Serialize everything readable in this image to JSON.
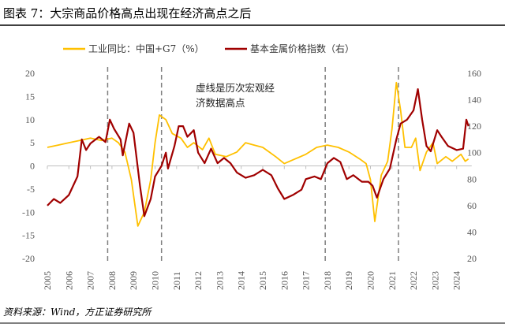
{
  "title": "图表 7：大宗商品价格高点出现在经济高点之后",
  "source": "资料来源：Wind，方正证券研究所",
  "colors": {
    "ip": "#FFC000",
    "metal": "#A00000"
  },
  "chart_data": {
    "type": "line",
    "title": "图表 7：大宗商品价格高点出现在经济高点之后",
    "annotation": "虚线是历次宏观经济数据高点",
    "annotation_lines": [
      "虚线是历次宏观经",
      "济数据高点"
    ],
    "x_ticks": [
      "2005",
      "2006",
      "2007",
      "2008",
      "2009",
      "2010",
      "2011",
      "2012",
      "2013",
      "2014",
      "2015",
      "2016",
      "2017",
      "2018",
      "2019",
      "2020",
      "2021",
      "2022",
      "2023",
      "2024"
    ],
    "y_left": {
      "ylim": [
        -20,
        20
      ],
      "ticks": [
        "20",
        "15",
        "10",
        "5",
        "0",
        "-5",
        "-10",
        "-15",
        "-20"
      ]
    },
    "y_right": {
      "ylim": [
        20,
        160
      ],
      "ticks": [
        "160",
        "140",
        "120",
        "100",
        "80",
        "60",
        "40",
        "20"
      ]
    },
    "vlines": [
      2007.8,
      2010.3,
      2017.9,
      2021.3
    ],
    "grid": false,
    "legend_position": "top",
    "series": [
      {
        "name": "工业同比：中国+G7（%）",
        "axis": "left",
        "x": [
          2005,
          2005.5,
          2006,
          2006.5,
          2007,
          2007.5,
          2008,
          2008.3,
          2008.6,
          2008.9,
          2009.2,
          2009.5,
          2009.8,
          2010.0,
          2010.2,
          2010.5,
          2010.8,
          2011.2,
          2011.5,
          2011.8,
          2012.2,
          2012.5,
          2012.8,
          2013.3,
          2013.8,
          2014.2,
          2014.6,
          2015.0,
          2015.3,
          2015.6,
          2016.0,
          2016.5,
          2017.0,
          2017.5,
          2018.0,
          2018.5,
          2019.0,
          2019.5,
          2019.8,
          2020.0,
          2020.2,
          2020.5,
          2020.8,
          2021.0,
          2021.2,
          2021.4,
          2021.6,
          2021.9,
          2022.1,
          2022.3,
          2022.6,
          2022.9,
          2023.1,
          2023.5,
          2023.8,
          2024.2,
          2024.4,
          2024.55
        ],
        "values": [
          4,
          4.5,
          5,
          5.5,
          6,
          5.5,
          6,
          5,
          3,
          -3,
          -13,
          -10,
          -3,
          5,
          11,
          10,
          7,
          6,
          4,
          5,
          3.5,
          6,
          2.5,
          2,
          3,
          5,
          4.5,
          4,
          3,
          2,
          0.5,
          1.5,
          2.5,
          4,
          4.5,
          4,
          3,
          1.5,
          0.5,
          -3,
          -12,
          -2,
          1,
          8,
          18,
          12,
          4,
          4,
          6,
          -1,
          3,
          5,
          0.5,
          2,
          1,
          2.5,
          1,
          1.5
        ]
      },
      {
        "name": "基本金属价格指数（右）",
        "axis": "right",
        "x": [
          2005,
          2005.3,
          2005.6,
          2006,
          2006.4,
          2006.6,
          2006.8,
          2007,
          2007.4,
          2007.7,
          2007.9,
          2008.1,
          2008.4,
          2008.5,
          2008.8,
          2009.0,
          2009.3,
          2009.5,
          2009.8,
          2010.0,
          2010.3,
          2010.5,
          2010.6,
          2010.9,
          2011.1,
          2011.3,
          2011.5,
          2011.8,
          2012.0,
          2012.3,
          2012.6,
          2012.9,
          2013.2,
          2013.5,
          2013.8,
          2014.2,
          2014.6,
          2015.0,
          2015.4,
          2015.7,
          2016.0,
          2016.4,
          2016.8,
          2017.0,
          2017.4,
          2017.7,
          2018.0,
          2018.3,
          2018.6,
          2018.9,
          2019.2,
          2019.6,
          2019.9,
          2020.1,
          2020.3,
          2020.6,
          2020.9,
          2021.2,
          2021.4,
          2021.7,
          2022.0,
          2022.2,
          2022.4,
          2022.6,
          2022.8,
          2023.1,
          2023.3,
          2023.6,
          2024.0,
          2024.3,
          2024.45,
          2024.55
        ],
        "values": [
          60,
          65,
          62,
          68,
          82,
          110,
          102,
          107,
          112,
          108,
          125,
          118,
          110,
          98,
          122,
          115,
          75,
          52,
          65,
          82,
          90,
          100,
          88,
          105,
          120,
          120,
          112,
          117,
          100,
          92,
          103,
          92,
          96,
          92,
          85,
          81,
          83,
          87,
          83,
          73,
          65,
          68,
          72,
          80,
          82,
          80,
          92,
          96,
          93,
          80,
          83,
          78,
          78,
          75,
          66,
          80,
          88,
          110,
          122,
          125,
          132,
          148,
          125,
          105,
          101,
          117,
          112,
          105,
          102,
          103,
          125,
          120
        ]
      }
    ]
  }
}
